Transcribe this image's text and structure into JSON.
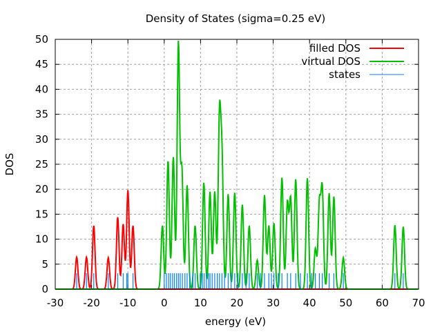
{
  "chart_data": {
    "type": "line",
    "title": "Density of States (sigma=0.25 eV)",
    "xlabel": "energy (eV)",
    "ylabel": "DOS",
    "xlim": [
      -30,
      70
    ],
    "ylim": [
      0,
      50
    ],
    "xticks": [
      -30,
      -20,
      -10,
      0,
      10,
      20,
      30,
      40,
      50,
      60,
      70
    ],
    "yticks": [
      0,
      5,
      10,
      15,
      20,
      25,
      30,
      35,
      40,
      45,
      50
    ],
    "grid": true,
    "legend_position": "top-right",
    "peak_width": 0.35,
    "series": [
      {
        "name": "filled DOS",
        "color": "#ff0000",
        "peaks": [
          [
            -24.1,
            6.4
          ],
          [
            -21.4,
            6.4
          ],
          [
            -19.4,
            12.7
          ],
          [
            -15.4,
            6.3
          ],
          [
            -12.8,
            14.4
          ],
          [
            -11.3,
            13.0
          ],
          [
            -10.0,
            19.8
          ],
          [
            -8.6,
            12.7
          ]
        ]
      },
      {
        "name": "virtual DOS",
        "color": "#00c000",
        "peaks": [
          [
            -0.5,
            12.7
          ],
          [
            1.05,
            25.7
          ],
          [
            2.5,
            26.4
          ],
          [
            3.9,
            49.1
          ],
          [
            4.85,
            23.8
          ],
          [
            6.3,
            20.8
          ],
          [
            8.5,
            12.7
          ],
          [
            10.9,
            21.3
          ],
          [
            12.6,
            19.5
          ],
          [
            13.9,
            19.5
          ],
          [
            15.2,
            33.5
          ],
          [
            15.9,
            25.0
          ],
          [
            17.6,
            19.0
          ],
          [
            19.4,
            19.3
          ],
          [
            21.5,
            16.9
          ],
          [
            23.4,
            12.7
          ],
          [
            25.6,
            5.8
          ],
          [
            27.6,
            18.8
          ],
          [
            28.8,
            12.7
          ],
          [
            30.2,
            13.2
          ],
          [
            32.4,
            22.3
          ],
          [
            33.9,
            17.1
          ],
          [
            34.8,
            18.0
          ],
          [
            36.2,
            22.0
          ],
          [
            39.4,
            22.2
          ],
          [
            41.6,
            8.1
          ],
          [
            42.7,
            16.9
          ],
          [
            43.5,
            19.9
          ],
          [
            45.4,
            19.2
          ],
          [
            46.7,
            18.5
          ],
          [
            49.3,
            6.3
          ],
          [
            63.5,
            12.8
          ],
          [
            65.8,
            12.5
          ]
        ]
      },
      {
        "name": "states",
        "color": "#0080ff",
        "stick_height": 3.2,
        "energies": [
          -24.1,
          -21.4,
          -19.4,
          -15.4,
          -12.8,
          -11.3,
          -10.3,
          -10.0,
          -8.6,
          0.0,
          0.6,
          1.2,
          1.7,
          2.3,
          2.8,
          3.4,
          3.9,
          4.4,
          5.0,
          5.7,
          6.3,
          7.0,
          7.9,
          8.5,
          9.9,
          10.5,
          11.0,
          11.6,
          12.2,
          12.6,
          13.2,
          13.9,
          14.6,
          15.2,
          15.9,
          16.6,
          17.6,
          18.4,
          19.4,
          20.3,
          21.5,
          22.5,
          23.4,
          25.6,
          26.5,
          27.6,
          28.8,
          29.5,
          30.2,
          31.4,
          32.4,
          33.9,
          34.8,
          36.2,
          37.5,
          39.4,
          40.6,
          41.6,
          42.7,
          43.5,
          45.4,
          46.7,
          49.3,
          63.5,
          65.8
        ]
      }
    ]
  }
}
